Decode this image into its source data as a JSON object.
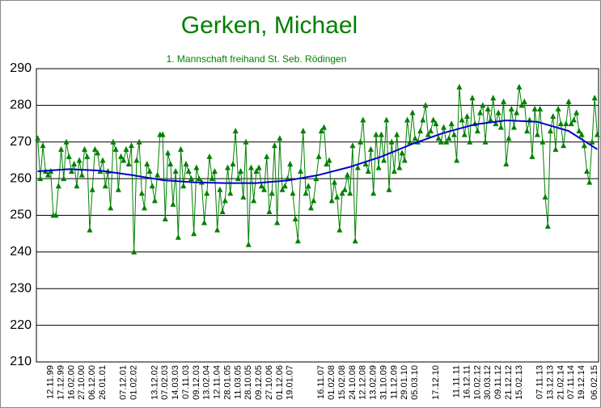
{
  "chart_data": {
    "type": "line",
    "title": "Gerken, Michael",
    "subtitle": "1. Mannschaft freihand St. Seb. Rödingen",
    "ylim": [
      210,
      290
    ],
    "yticks": [
      210,
      220,
      230,
      240,
      250,
      260,
      270,
      280,
      290
    ],
    "grid": true,
    "categories": [
      null,
      null,
      null,
      null,
      null,
      "12.11.99",
      null,
      null,
      null,
      "17.12.99",
      null,
      null,
      null,
      "16.02.00",
      null,
      null,
      null,
      "27.10.00",
      null,
      null,
      null,
      "06.12.00",
      null,
      null,
      null,
      "26.01.01",
      null,
      null,
      null,
      null,
      null,
      null,
      null,
      "07.12.01",
      null,
      null,
      null,
      "01.02.02",
      null,
      null,
      null,
      null,
      null,
      null,
      null,
      "13.12.02",
      null,
      null,
      null,
      "07.02.03",
      null,
      null,
      null,
      "14.03.03",
      null,
      null,
      null,
      "07.11.03",
      null,
      null,
      null,
      "09.12.03",
      null,
      null,
      null,
      "13.02.04",
      null,
      null,
      null,
      "12.11.04",
      null,
      null,
      null,
      "28.01.05",
      null,
      null,
      null,
      "11.03.05",
      null,
      null,
      null,
      "28.10.05",
      null,
      null,
      null,
      "09.12.05",
      null,
      null,
      null,
      "27.10.06",
      null,
      null,
      null,
      "01.12.06",
      null,
      null,
      null,
      "19.01.07",
      null,
      null,
      null,
      null,
      null,
      null,
      null,
      null,
      null,
      null,
      null,
      "16.11.07",
      null,
      null,
      null,
      "01.02.08",
      null,
      null,
      null,
      "15.02.08",
      null,
      null,
      null,
      "24.10.08",
      null,
      null,
      null,
      "12.12.08",
      null,
      null,
      null,
      "13.02.09",
      null,
      null,
      null,
      "31.10.09",
      null,
      null,
      null,
      "11.12.09",
      null,
      null,
      null,
      "29.01.10",
      null,
      null,
      null,
      "05.03.10",
      null,
      null,
      null,
      null,
      null,
      null,
      null,
      "17.12.10",
      null,
      null,
      null,
      null,
      null,
      null,
      null,
      "11.11.11",
      null,
      null,
      null,
      "16.12.11",
      null,
      null,
      null,
      "10.02.12",
      null,
      null,
      null,
      "30.03.12",
      null,
      null,
      null,
      "09.11.12",
      null,
      null,
      null,
      "21.12.12",
      null,
      null,
      null,
      "15.02.13",
      null,
      null,
      null,
      null,
      null,
      null,
      null,
      "07.11.13",
      null,
      null,
      null,
      "13.12.13",
      null,
      null,
      null,
      "21.02.14",
      null,
      null,
      null,
      "07.11.14",
      null,
      null,
      null,
      "19.12.14",
      null,
      null,
      null,
      null,
      "06.02.15",
      null
    ],
    "series": [
      {
        "color": "#008000",
        "values": [
          271,
          260,
          269,
          262,
          261,
          262,
          250,
          250,
          258,
          268,
          260,
          270,
          266,
          262,
          264,
          258,
          265,
          261,
          268,
          266,
          246,
          257,
          268,
          267,
          262,
          265,
          258,
          262,
          252,
          270,
          268,
          257,
          266,
          265,
          268,
          264,
          269,
          240,
          265,
          270,
          256,
          252,
          264,
          262,
          258,
          254,
          261,
          272,
          272,
          249,
          267,
          264,
          253,
          262,
          244,
          268,
          258,
          264,
          262,
          260,
          245,
          263,
          260,
          259,
          248,
          256,
          266,
          260,
          262,
          246,
          257,
          251,
          254,
          263,
          256,
          264,
          273,
          260,
          262,
          255,
          270,
          242,
          263,
          254,
          262,
          263,
          258,
          257,
          266,
          251,
          256,
          269,
          248,
          271,
          257,
          258,
          260,
          264,
          256,
          249,
          243,
          262,
          273,
          256,
          258,
          252,
          254,
          260,
          266,
          273,
          274,
          264,
          265,
          254,
          259,
          255,
          246,
          256,
          257,
          261,
          256,
          269,
          243,
          263,
          270,
          276,
          264,
          262,
          268,
          256,
          272,
          263,
          272,
          265,
          276,
          257,
          270,
          262,
          272,
          263,
          267,
          265,
          276,
          270,
          278,
          271,
          270,
          273,
          276,
          280,
          272,
          273,
          276,
          275,
          271,
          270,
          274,
          270,
          271,
          275,
          272,
          265,
          285,
          276,
          272,
          277,
          270,
          282,
          275,
          273,
          278,
          280,
          270,
          279,
          276,
          282,
          275,
          278,
          274,
          281,
          264,
          271,
          279,
          274,
          278,
          285,
          280,
          281,
          273,
          276,
          266,
          279,
          272,
          279,
          270,
          255,
          247,
          273,
          277,
          268,
          279,
          275,
          269,
          275,
          281,
          275,
          276,
          278,
          273,
          272,
          269,
          262,
          259,
          270,
          282,
          272
        ]
      }
    ],
    "trendline": {
      "color": "#0000cc",
      "x": [
        0,
        12,
        24,
        36,
        48,
        60,
        72,
        84,
        96,
        108,
        120,
        132,
        144,
        156,
        168,
        180,
        192,
        204,
        215
      ],
      "values": [
        262,
        262.6,
        262.2,
        261,
        259.6,
        259,
        258.8,
        258.8,
        259.5,
        261,
        263.2,
        266,
        269.5,
        272.5,
        274.8,
        275.9,
        275.5,
        273,
        268
      ]
    }
  }
}
